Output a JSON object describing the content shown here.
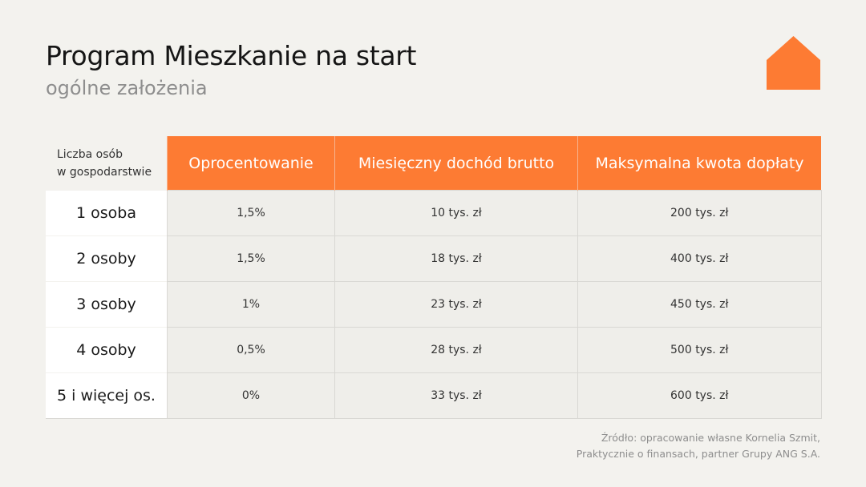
{
  "header": {
    "title": "Program Mieszkanie na start",
    "subtitle": "ogólne założenia",
    "logo_icon": "house-icon",
    "accent_color": "#fd7b33"
  },
  "table": {
    "columns": [
      "Liczba osób w gospodarstwie",
      "Oprocentowanie",
      "Miesięczny dochód brutto",
      "Maksymalna kwota dopłaty"
    ],
    "corner_lines": [
      "Liczba osób",
      "w gospodarstwie"
    ],
    "rows": [
      [
        "1 osoba",
        "1,5%",
        "10 tys. zł",
        "200 tys. zł"
      ],
      [
        "2 osoby",
        "1,5%",
        "18 tys. zł",
        "400 tys. zł"
      ],
      [
        "3 osoby",
        "1%",
        "23 tys. zł",
        "450 tys. zł"
      ],
      [
        "4 osoby",
        "0,5%",
        "28 tys. zł",
        "500 tys. zł"
      ],
      [
        "5 i więcej os.",
        "0%",
        "33 tys. zł",
        "600 tys. zł"
      ]
    ]
  },
  "footer": {
    "source_lines": [
      "Źródło: opracowanie własne Kornelia Szmit,",
      "Praktycznie o finansach, partner Grupy ANG S.A."
    ]
  }
}
